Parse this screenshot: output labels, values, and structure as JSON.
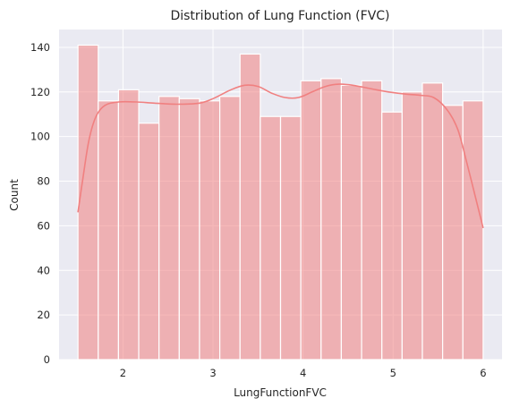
{
  "chart_data": {
    "type": "bar",
    "subtype": "histogram-with-kde",
    "title": "Distribution of Lung Function (FVC)",
    "xlabel": "LungFunctionFVC",
    "ylabel": "Count",
    "xlim": [
      1.29,
      6.21
    ],
    "ylim": [
      0,
      148
    ],
    "x_ticks": [
      2,
      3,
      4,
      5,
      6
    ],
    "y_ticks": [
      0,
      20,
      40,
      60,
      80,
      100,
      120,
      140
    ],
    "grid": true,
    "background": "#eaeaf2",
    "bar_color": "#f08080",
    "bar_alpha": 0.55,
    "kde_color": "#f08080",
    "bins": [
      {
        "x0": 1.5,
        "x1": 1.725,
        "count": 141
      },
      {
        "x0": 1.725,
        "x1": 1.95,
        "count": 116
      },
      {
        "x0": 1.95,
        "x1": 2.175,
        "count": 121
      },
      {
        "x0": 2.175,
        "x1": 2.4,
        "count": 106
      },
      {
        "x0": 2.4,
        "x1": 2.625,
        "count": 118
      },
      {
        "x0": 2.625,
        "x1": 2.85,
        "count": 117
      },
      {
        "x0": 2.85,
        "x1": 3.075,
        "count": 116
      },
      {
        "x0": 3.075,
        "x1": 3.3,
        "count": 118
      },
      {
        "x0": 3.3,
        "x1": 3.525,
        "count": 137
      },
      {
        "x0": 3.525,
        "x1": 3.75,
        "count": 109
      },
      {
        "x0": 3.75,
        "x1": 3.975,
        "count": 109
      },
      {
        "x0": 3.975,
        "x1": 4.2,
        "count": 125
      },
      {
        "x0": 4.2,
        "x1": 4.425,
        "count": 126
      },
      {
        "x0": 4.425,
        "x1": 4.65,
        "count": 123
      },
      {
        "x0": 4.65,
        "x1": 4.875,
        "count": 125
      },
      {
        "x0": 4.875,
        "x1": 5.1,
        "count": 111
      },
      {
        "x0": 5.1,
        "x1": 5.325,
        "count": 120
      },
      {
        "x0": 5.325,
        "x1": 5.55,
        "count": 124
      },
      {
        "x0": 5.55,
        "x1": 5.775,
        "count": 114
      },
      {
        "x0": 5.775,
        "x1": 6.0,
        "count": 116
      }
    ],
    "kde": [
      [
        1.5,
        66
      ],
      [
        1.55,
        80
      ],
      [
        1.62,
        98
      ],
      [
        1.7,
        109
      ],
      [
        1.8,
        114
      ],
      [
        1.95,
        115.5
      ],
      [
        2.15,
        115.5
      ],
      [
        2.35,
        115
      ],
      [
        2.6,
        114.5
      ],
      [
        2.85,
        115
      ],
      [
        3.0,
        117
      ],
      [
        3.2,
        121
      ],
      [
        3.35,
        123
      ],
      [
        3.5,
        122.5
      ],
      [
        3.65,
        119.5
      ],
      [
        3.8,
        117.5
      ],
      [
        3.95,
        117.5
      ],
      [
        4.1,
        120
      ],
      [
        4.25,
        122.5
      ],
      [
        4.4,
        123.5
      ],
      [
        4.55,
        123
      ],
      [
        4.75,
        121.5
      ],
      [
        4.95,
        120
      ],
      [
        5.15,
        119
      ],
      [
        5.3,
        118.5
      ],
      [
        5.45,
        117.5
      ],
      [
        5.6,
        112
      ],
      [
        5.72,
        103
      ],
      [
        5.82,
        88
      ],
      [
        5.92,
        72
      ],
      [
        6.0,
        59
      ]
    ]
  }
}
